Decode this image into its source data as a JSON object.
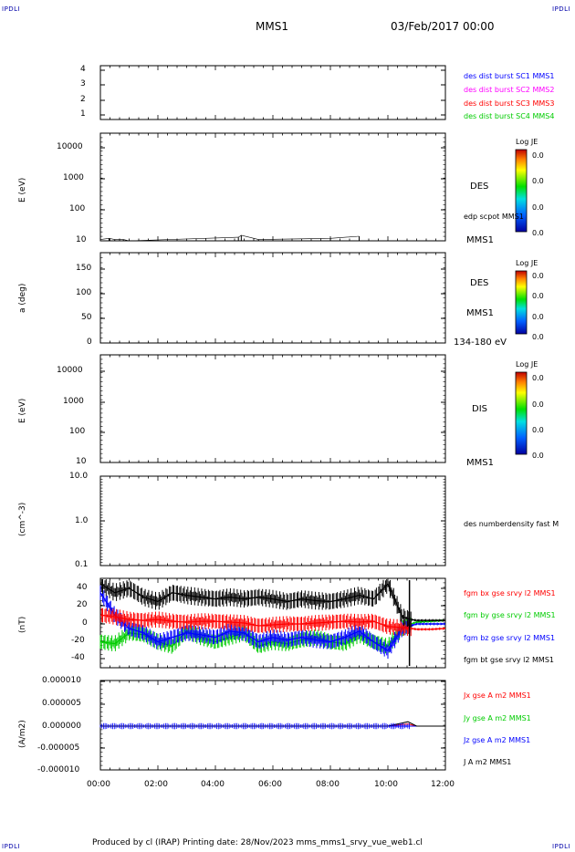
{
  "header": {
    "corner_left_top": "IPDLI",
    "corner_right_top": "IPDLI",
    "corner_left_bottom": "IPDLI",
    "corner_right_bottom": "IPDLI",
    "mission": "MMS1",
    "date": "03/Feb/2017 00:00"
  },
  "footer": {
    "text": "Produced by cl (IRAP)   Printing date: 28/Nov/2023   mms_mms1_srvy_vue_web1.cl"
  },
  "colors": {
    "blue": "#0000ff",
    "magenta": "#ff00ff",
    "red": "#ff0000",
    "green": "#00cc00",
    "black": "#000000"
  },
  "x_axis": {
    "ticks": [
      "00:00",
      "02:00",
      "04:00",
      "06:00",
      "08:00",
      "10:00",
      "12:00"
    ],
    "hours": [
      0,
      2,
      4,
      6,
      8,
      10,
      12
    ]
  },
  "panels": {
    "p1": {
      "yticks": [
        "4",
        "3",
        "2",
        "1"
      ],
      "legend": [
        {
          "text": "des dist burst SC1 MMS1",
          "color": "#0000ff"
        },
        {
          "text": "des dist burst SC2 MMS2",
          "color": "#ff00ff"
        },
        {
          "text": "des dist burst SC3 MMS3",
          "color": "#ff0000"
        },
        {
          "text": "des dist burst SC4 MMS4",
          "color": "#00cc00"
        }
      ]
    },
    "p2": {
      "ylabel": "E (eV)",
      "yticks": [
        "10000",
        "1000",
        "100",
        "10"
      ],
      "label_main": "DES",
      "label_sub": "edp scpot MMS1",
      "label_bottom": "MMS1",
      "colorbar_title": "Log JE",
      "colorbar_ticks": [
        "0.0",
        "0.0",
        "0.0",
        "0.0"
      ]
    },
    "p3": {
      "ylabel": "a (deg)",
      "yticks": [
        "150",
        "100",
        "50",
        "0"
      ],
      "label_main": "DES",
      "label_sub": "MMS1",
      "label_bottom": "134-180 eV",
      "colorbar_title": "Log JE",
      "colorbar_ticks": [
        "0.0",
        "0.0",
        "0.0",
        "0.0"
      ]
    },
    "p4": {
      "ylabel": "E (eV)",
      "yticks": [
        "10000",
        "1000",
        "100",
        "10"
      ],
      "label_main": "DIS",
      "label_bottom": "MMS1",
      "colorbar_title": "Log JE",
      "colorbar_ticks": [
        "0.0",
        "0.0",
        "0.0",
        "0.0"
      ]
    },
    "p5": {
      "ylabel": "(cm^-3)",
      "yticks": [
        "10.0",
        "1.0",
        "0.1"
      ],
      "legend": "des numberdensity fast M"
    },
    "p6": {
      "ylabel": "(nT)",
      "yticks": [
        "40",
        "20",
        "0",
        "-20",
        "-40"
      ],
      "legend": [
        {
          "text": "fgm bx gse srvy l2 MMS1",
          "color": "#ff0000"
        },
        {
          "text": "fgm by gse srvy l2 MMS1",
          "color": "#00cc00"
        },
        {
          "text": "fgm bz gse srvy l2 MMS1",
          "color": "#0000ff"
        },
        {
          "text": "fgm bt gse srvy l2 MMS1",
          "color": "#000000"
        }
      ]
    },
    "p7": {
      "ylabel": "(A/m2)",
      "yticks": [
        "0.000010",
        "0.000005",
        "0.000000",
        "-0.000005",
        "-0.000010"
      ],
      "legend": [
        {
          "text": "Jx gse A m2 MMS1",
          "color": "#ff0000"
        },
        {
          "text": "Jy gse A m2 MMS1",
          "color": "#00cc00"
        },
        {
          "text": "Jz gse A m2 MMS1",
          "color": "#0000ff"
        },
        {
          "text": "J A m2 MMS1",
          "color": "#000000"
        }
      ]
    }
  },
  "chart_data": [
    {
      "type": "line",
      "title": "MMS1 03/Feb/2017 00:00",
      "panel": "burst intervals",
      "ylim": [
        0.5,
        4.5
      ],
      "xlim_hours": [
        0,
        12
      ],
      "series": [
        {
          "name": "des dist burst SC1 MMS1",
          "values": []
        },
        {
          "name": "des dist burst SC2 MMS2",
          "values": []
        },
        {
          "name": "des dist burst SC3 MMS3",
          "values": []
        },
        {
          "name": "des dist burst SC4 MMS4",
          "values": []
        }
      ]
    },
    {
      "type": "line",
      "panel": "DES energy spectrogram with spacecraft potential",
      "ylabel": "E (eV)",
      "ylim": [
        10,
        20000
      ],
      "log_y": true,
      "series": [
        {
          "name": "edp scpot MMS1",
          "x_hours": [
            0.0,
            0.3,
            0.5,
            0.8,
            1.0,
            4.8,
            4.9,
            5.5,
            8.0,
            9.0
          ],
          "values": [
            11,
            12,
            11,
            11,
            10,
            13,
            15,
            11,
            12,
            14
          ]
        }
      ]
    },
    {
      "type": "heatmap",
      "panel": "DES pitch angle",
      "ylabel": "a (deg)",
      "ylim": [
        0,
        180
      ],
      "energy_range": "134-180 eV"
    },
    {
      "type": "heatmap",
      "panel": "DIS energy spectrogram",
      "ylabel": "E (eV)",
      "ylim": [
        10,
        20000
      ],
      "log_y": true
    },
    {
      "type": "line",
      "panel": "density",
      "ylabel": "(cm^-3)",
      "ylim": [
        0.1,
        10.0
      ],
      "log_y": true,
      "series": [
        {
          "name": "des numberdensity fast M",
          "values": []
        }
      ]
    },
    {
      "type": "line",
      "panel": "magnetic field",
      "ylabel": "(nT)",
      "ylim": [
        -50,
        50
      ],
      "x_hours": [
        0,
        0.5,
        1,
        1.5,
        2,
        2.5,
        3,
        3.5,
        4,
        4.5,
        5,
        5.5,
        6,
        6.5,
        7,
        7.5,
        8,
        8.5,
        9,
        9.5,
        10,
        10.5,
        10.8,
        11,
        11.5,
        12
      ],
      "series": [
        {
          "name": "fgm bx gse srvy l2 MMS1",
          "values": [
            10,
            8,
            5,
            4,
            5,
            3,
            2,
            3,
            3,
            2,
            1,
            -2,
            -1,
            0,
            0,
            1,
            2,
            3,
            2,
            3,
            -3,
            -4,
            -5,
            -6,
            -6,
            -5
          ]
        },
        {
          "name": "fgm by gse srvy l2 MMS1",
          "values": [
            -20,
            -22,
            -10,
            -12,
            -20,
            -25,
            -8,
            -15,
            -20,
            -15,
            -10,
            -25,
            -20,
            -22,
            -18,
            -15,
            -20,
            -22,
            -12,
            -20,
            -25,
            -5,
            0,
            2,
            3,
            4
          ]
        },
        {
          "name": "fgm bz gse srvy l2 MMS1",
          "values": [
            35,
            10,
            -5,
            -10,
            -20,
            -15,
            -10,
            -12,
            -15,
            -8,
            -10,
            -20,
            -15,
            -18,
            -15,
            -18,
            -20,
            -15,
            -8,
            -20,
            -30,
            -5,
            -2,
            0,
            0,
            0
          ]
        },
        {
          "name": "fgm bt gse srvy l2 MMS1",
          "values": [
            45,
            35,
            40,
            30,
            25,
            35,
            32,
            30,
            28,
            30,
            28,
            30,
            28,
            25,
            28,
            26,
            25,
            28,
            32,
            28,
            45,
            8,
            5,
            4,
            4,
            4
          ]
        }
      ]
    },
    {
      "type": "line",
      "panel": "current density",
      "ylabel": "(A/m2)",
      "ylim": [
        -1e-05,
        1e-05
      ],
      "x_hours": [
        0,
        1,
        2,
        3,
        4,
        5,
        6,
        7,
        8,
        9,
        10,
        10.7,
        11,
        12
      ],
      "series": [
        {
          "name": "Jx gse A m2 MMS1",
          "values": [
            0,
            0,
            0,
            0,
            0,
            0,
            0,
            0,
            0,
            0,
            0,
            5e-07,
            0,
            0
          ]
        },
        {
          "name": "Jy gse A m2 MMS1",
          "values": [
            0,
            0,
            0,
            0,
            0,
            0,
            0,
            0,
            0,
            0,
            0,
            0,
            0,
            0
          ]
        },
        {
          "name": "Jz gse A m2 MMS1",
          "values": [
            0,
            0,
            0,
            0,
            0,
            0,
            0,
            0,
            0,
            0,
            0,
            0,
            0,
            0
          ]
        },
        {
          "name": "J A m2 MMS1",
          "values": [
            0,
            0,
            0,
            0,
            0,
            0,
            0,
            0,
            0,
            0,
            0,
            1e-06,
            0,
            0
          ]
        }
      ]
    }
  ]
}
